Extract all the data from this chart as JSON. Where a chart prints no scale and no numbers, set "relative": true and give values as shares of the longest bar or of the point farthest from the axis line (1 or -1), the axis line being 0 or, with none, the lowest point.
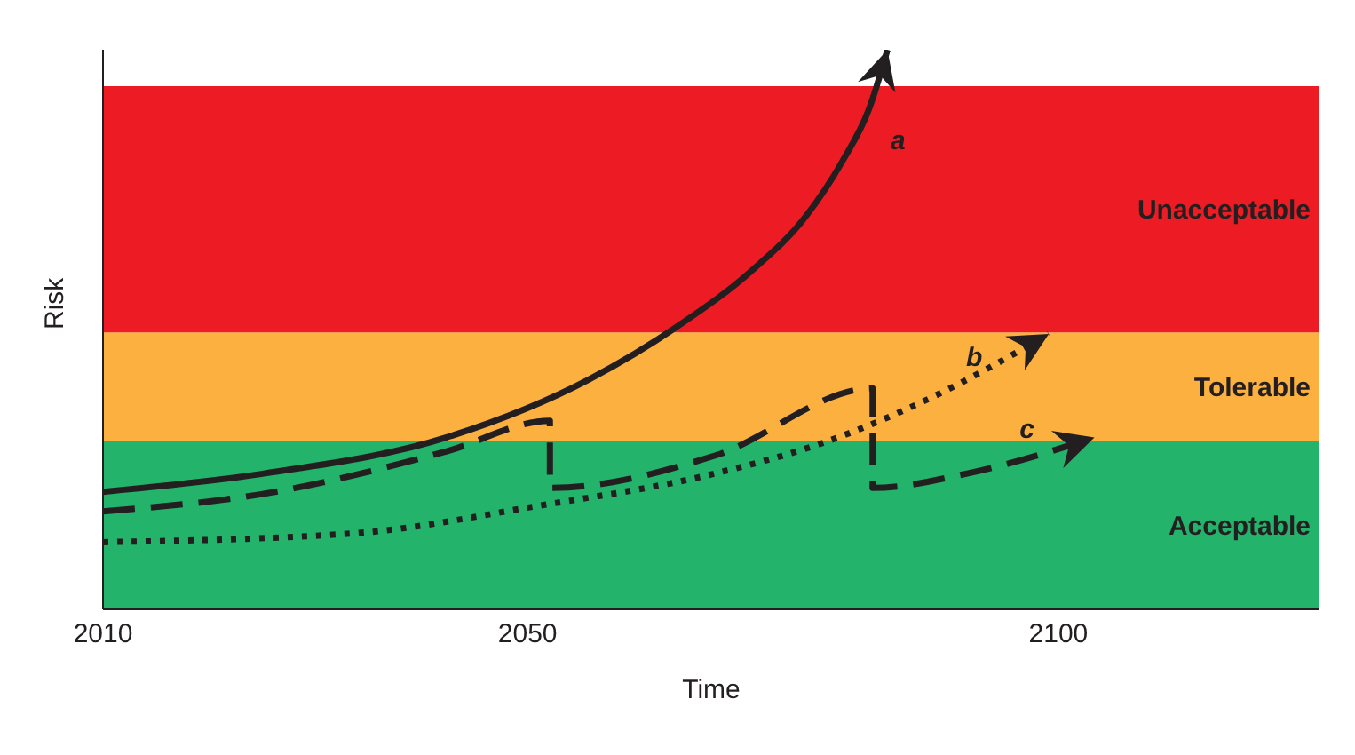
{
  "chart_data": {
    "type": "line",
    "relative": true,
    "xlabel": "Time",
    "ylabel": "Risk",
    "xlim": [
      2010,
      2124.6
    ],
    "xticks": [
      2010,
      2050,
      2100
    ],
    "marker": "none",
    "bands": [
      {
        "axis": "y",
        "from": 0,
        "to": 0.3,
        "label": "Acceptable",
        "color": "#23b36b"
      },
      {
        "axis": "y",
        "from": 0.3,
        "to": 0.495,
        "label": "Tolerable",
        "color": "#fbb040"
      },
      {
        "axis": "y",
        "from": 0.495,
        "to": 0.935,
        "label": "Unacceptable",
        "color": "#ed1c24"
      }
    ],
    "series": [
      {
        "name": "a",
        "color": "#231f20",
        "line_style": "solid",
        "x": [
          2010,
          2025.3,
          2042.3,
          2055.8,
          2064.3,
          2071.1,
          2076.2,
          2079.6,
          2082.2,
          2083.9
        ],
        "values": [
          0.21,
          0.243,
          0.307,
          0.411,
          0.508,
          0.605,
          0.702,
          0.799,
          0.896,
          1.0
        ]
      },
      {
        "name": "b",
        "color": "#231f20",
        "line_style": "dotted",
        "x": [
          2010,
          2033.8,
          2050.7,
          2067.7,
          2077.9,
          2088.1,
          2099.1
        ],
        "values": [
          0.12,
          0.136,
          0.184,
          0.243,
          0.298,
          0.379,
          0.492
        ]
      },
      {
        "name": "c",
        "color": "#231f20",
        "line_style": "dashed",
        "x": [
          2010,
          2025.3,
          2042.3,
          2052.1,
          2052.1,
          2067.7,
          2082.5,
          2082.5,
          2091.5,
          2103.4
        ],
        "values": [
          0.175,
          0.207,
          0.282,
          0.337,
          0.217,
          0.275,
          0.395,
          0.217,
          0.243,
          0.307
        ]
      }
    ]
  }
}
